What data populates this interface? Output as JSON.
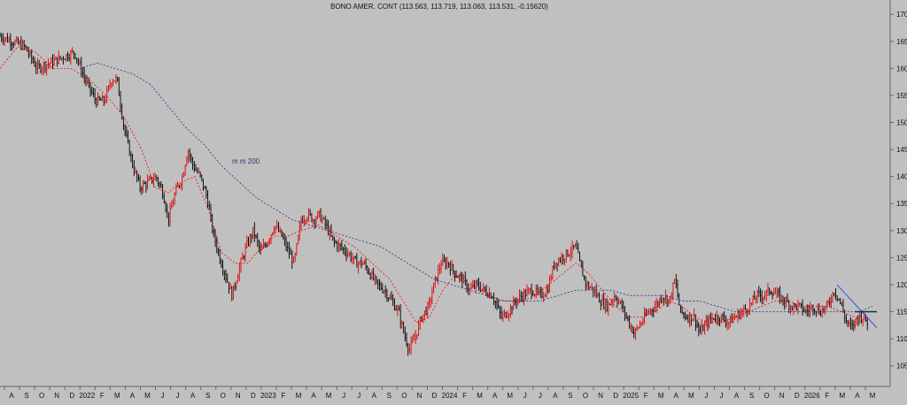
{
  "chart_data": {
    "type": "candlestick",
    "title": "BONO AMER. CONT (113.563, 113.719, 113.063, 113.531, -0.15620)",
    "ylim": [
      102,
      172
    ],
    "y_ticks": [
      105,
      110,
      115,
      120,
      125,
      130,
      135,
      140,
      145,
      150,
      155,
      160,
      165,
      170
    ],
    "x_labels": [
      "A",
      "S",
      "O",
      "N",
      "D",
      "2022",
      "F",
      "M",
      "A",
      "M",
      "J",
      "J",
      "A",
      "S",
      "O",
      "N",
      "D",
      "2023",
      "F",
      "M",
      "A",
      "M",
      "J",
      "J",
      "A",
      "S",
      "O",
      "N",
      "D",
      "2024",
      "F",
      "M",
      "A",
      "M",
      "J",
      "J",
      "A",
      "S",
      "O",
      "N",
      "D",
      "2025",
      "F",
      "M",
      "A",
      "M",
      "J",
      "J",
      "A",
      "S",
      "O",
      "N",
      "D",
      "2026",
      "F",
      "M",
      "A",
      "M"
    ],
    "grid": false,
    "colors": {
      "background": "#c0c0c0",
      "up": "#e00000",
      "down": "#000000",
      "ma_short": "#ff0000",
      "ma_long": "#2a2a8a",
      "trend": "#3050ff",
      "support": "#0a3a2a"
    },
    "annotation": "m m 200",
    "price_path": [
      [
        0,
        166
      ],
      [
        14,
        165
      ],
      [
        28,
        164
      ],
      [
        42,
        160
      ],
      [
        56,
        161
      ],
      [
        70,
        162
      ],
      [
        84,
        163
      ],
      [
        96,
        158
      ],
      [
        108,
        154
      ],
      [
        118,
        154
      ],
      [
        126,
        158
      ],
      [
        132,
        158
      ],
      [
        140,
        149
      ],
      [
        150,
        142
      ],
      [
        158,
        138
      ],
      [
        168,
        139
      ],
      [
        176,
        140
      ],
      [
        184,
        137
      ],
      [
        190,
        132
      ],
      [
        198,
        137
      ],
      [
        206,
        140
      ],
      [
        212,
        145
      ],
      [
        218,
        142
      ],
      [
        226,
        140
      ],
      [
        234,
        136
      ],
      [
        240,
        130
      ],
      [
        248,
        125
      ],
      [
        256,
        121
      ],
      [
        262,
        118
      ],
      [
        270,
        123
      ],
      [
        278,
        127
      ],
      [
        286,
        130
      ],
      [
        294,
        126
      ],
      [
        302,
        128
      ],
      [
        310,
        131
      ],
      [
        318,
        129
      ],
      [
        326,
        126
      ],
      [
        332,
        124
      ],
      [
        340,
        132
      ],
      [
        348,
        133
      ],
      [
        354,
        132
      ],
      [
        360,
        133
      ],
      [
        368,
        131
      ],
      [
        376,
        128
      ],
      [
        384,
        127
      ],
      [
        392,
        126
      ],
      [
        402,
        124
      ],
      [
        410,
        124
      ],
      [
        418,
        122
      ],
      [
        426,
        120
      ],
      [
        434,
        119
      ],
      [
        442,
        117
      ],
      [
        450,
        115
      ],
      [
        456,
        111
      ],
      [
        462,
        108
      ],
      [
        468,
        110
      ],
      [
        476,
        114
      ],
      [
        484,
        116
      ],
      [
        490,
        120
      ],
      [
        498,
        124
      ],
      [
        506,
        124
      ],
      [
        514,
        122
      ],
      [
        522,
        121
      ],
      [
        530,
        119
      ],
      [
        538,
        120
      ],
      [
        546,
        119
      ],
      [
        556,
        118
      ],
      [
        566,
        114
      ],
      [
        574,
        115
      ],
      [
        582,
        117
      ],
      [
        590,
        118
      ],
      [
        600,
        119
      ],
      [
        610,
        118
      ],
      [
        618,
        119
      ],
      [
        626,
        124
      ],
      [
        634,
        125
      ],
      [
        642,
        126
      ],
      [
        650,
        127
      ],
      [
        656,
        123
      ],
      [
        662,
        120
      ],
      [
        670,
        119
      ],
      [
        678,
        117
      ],
      [
        686,
        116
      ],
      [
        694,
        118
      ],
      [
        702,
        116
      ],
      [
        710,
        113
      ],
      [
        716,
        111
      ],
      [
        724,
        113
      ],
      [
        732,
        115
      ],
      [
        740,
        116
      ],
      [
        748,
        118
      ],
      [
        756,
        117
      ],
      [
        762,
        121
      ],
      [
        768,
        115
      ],
      [
        776,
        114
      ],
      [
        784,
        114
      ],
      [
        790,
        111
      ],
      [
        798,
        113
      ],
      [
        806,
        114
      ],
      [
        814,
        114
      ],
      [
        822,
        113
      ],
      [
        830,
        114
      ],
      [
        838,
        115
      ],
      [
        846,
        116
      ],
      [
        854,
        118
      ],
      [
        862,
        118
      ],
      [
        870,
        119
      ],
      [
        878,
        118
      ],
      [
        886,
        117
      ],
      [
        894,
        116
      ],
      [
        902,
        116
      ],
      [
        910,
        115
      ],
      [
        918,
        116
      ],
      [
        926,
        115
      ],
      [
        934,
        116
      ],
      [
        942,
        119
      ],
      [
        948,
        117
      ],
      [
        956,
        113
      ],
      [
        962,
        112
      ],
      [
        968,
        114
      ],
      [
        974,
        114
      ],
      [
        980,
        113
      ]
    ],
    "ma_short_path": [
      [
        0,
        160
      ],
      [
        20,
        164
      ],
      [
        40,
        163
      ],
      [
        60,
        160
      ],
      [
        80,
        160
      ],
      [
        100,
        158
      ],
      [
        120,
        155
      ],
      [
        140,
        151
      ],
      [
        160,
        145
      ],
      [
        175,
        138
      ],
      [
        190,
        137
      ],
      [
        205,
        139
      ],
      [
        220,
        140
      ],
      [
        235,
        134
      ],
      [
        250,
        126
      ],
      [
        265,
        124
      ],
      [
        280,
        124
      ],
      [
        295,
        127
      ],
      [
        310,
        129
      ],
      [
        325,
        129
      ],
      [
        340,
        130
      ],
      [
        360,
        131
      ],
      [
        380,
        129
      ],
      [
        400,
        127
      ],
      [
        420,
        124
      ],
      [
        440,
        121
      ],
      [
        455,
        117
      ],
      [
        470,
        113
      ],
      [
        485,
        114
      ],
      [
        500,
        119
      ],
      [
        515,
        122
      ],
      [
        530,
        120
      ],
      [
        545,
        119
      ],
      [
        560,
        117
      ],
      [
        575,
        117
      ],
      [
        590,
        117
      ],
      [
        605,
        118
      ],
      [
        620,
        120
      ],
      [
        635,
        122
      ],
      [
        650,
        124
      ],
      [
        665,
        122
      ],
      [
        680,
        119
      ],
      [
        695,
        116
      ],
      [
        710,
        114
      ],
      [
        725,
        114
      ],
      [
        740,
        115
      ],
      [
        755,
        117
      ],
      [
        770,
        116
      ],
      [
        785,
        114
      ],
      [
        800,
        113
      ],
      [
        815,
        113
      ],
      [
        830,
        114
      ],
      [
        845,
        115
      ],
      [
        860,
        116
      ],
      [
        875,
        117
      ],
      [
        890,
        117
      ],
      [
        905,
        116
      ],
      [
        920,
        116
      ],
      [
        935,
        116
      ],
      [
        950,
        115
      ],
      [
        965,
        114
      ],
      [
        980,
        114
      ]
    ],
    "ma_long_path": [
      [
        90,
        160
      ],
      [
        110,
        161
      ],
      [
        130,
        160
      ],
      [
        150,
        159
      ],
      [
        170,
        157
      ],
      [
        190,
        153
      ],
      [
        210,
        149
      ],
      [
        230,
        146
      ],
      [
        250,
        142
      ],
      [
        270,
        139
      ],
      [
        290,
        136
      ],
      [
        310,
        134
      ],
      [
        330,
        132
      ],
      [
        350,
        131
      ],
      [
        370,
        130
      ],
      [
        390,
        129
      ],
      [
        410,
        128
      ],
      [
        430,
        127
      ],
      [
        450,
        125
      ],
      [
        470,
        123
      ],
      [
        490,
        121
      ],
      [
        510,
        120
      ],
      [
        530,
        119
      ],
      [
        550,
        118
      ],
      [
        570,
        117
      ],
      [
        590,
        117
      ],
      [
        610,
        117
      ],
      [
        630,
        118
      ],
      [
        650,
        119
      ],
      [
        670,
        119
      ],
      [
        690,
        119
      ],
      [
        710,
        118
      ],
      [
        730,
        118
      ],
      [
        750,
        118
      ],
      [
        770,
        117
      ],
      [
        790,
        117
      ],
      [
        810,
        116
      ],
      [
        830,
        115
      ],
      [
        850,
        115
      ],
      [
        870,
        115
      ],
      [
        890,
        115
      ],
      [
        910,
        115
      ],
      [
        930,
        115
      ],
      [
        950,
        115
      ],
      [
        970,
        115
      ],
      [
        985,
        116
      ]
    ],
    "trend_line": [
      [
        945,
        120
      ],
      [
        990,
        112
      ]
    ],
    "support_line": [
      [
        965,
        115
      ],
      [
        990,
        115
      ]
    ]
  }
}
